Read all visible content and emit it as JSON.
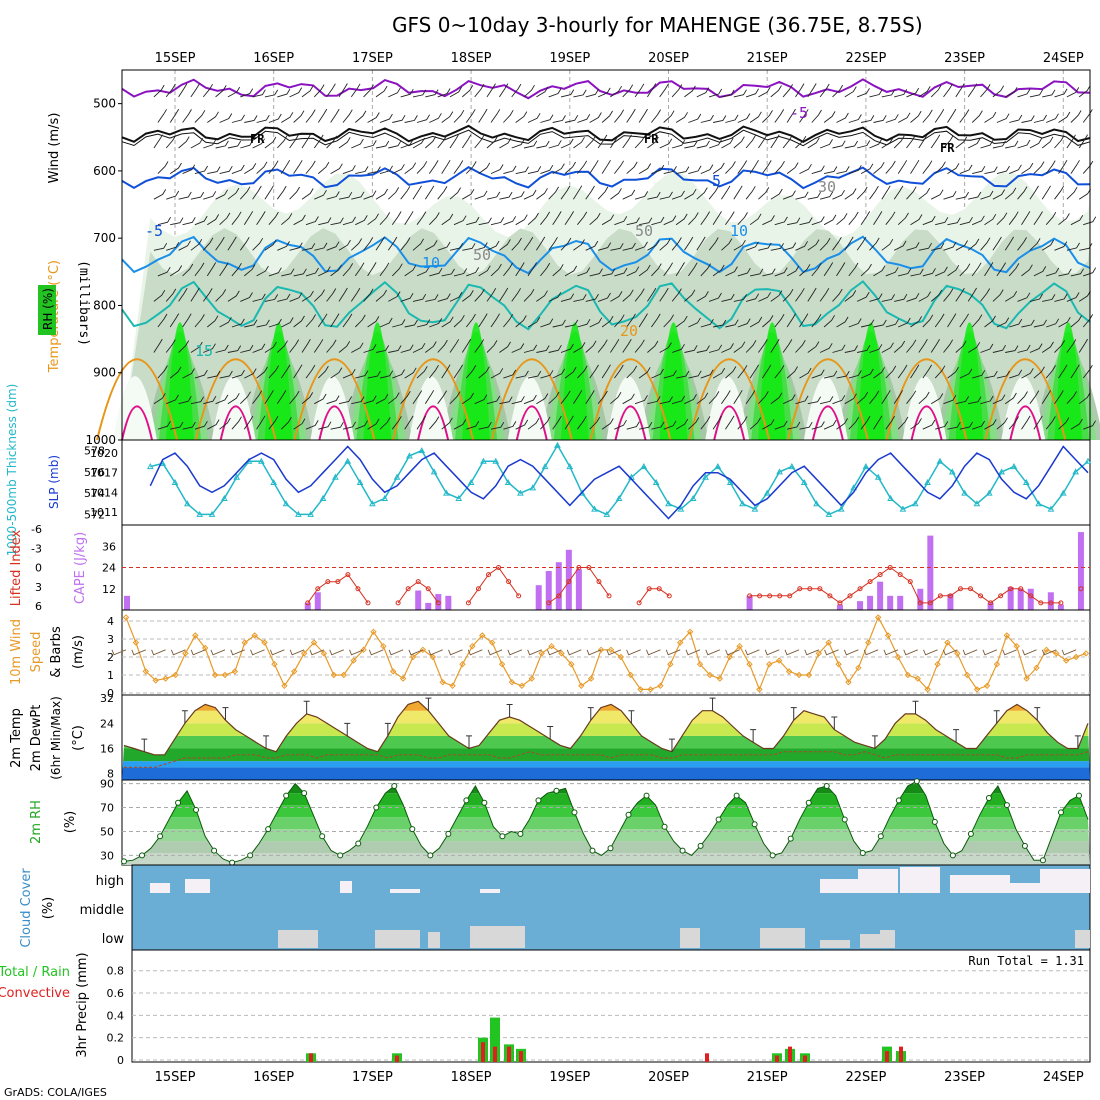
{
  "title": "GFS 0~10day 3-hourly for MAHENGE (36.75E, 8.75S)",
  "credit": "GrADS: COLA/IGES",
  "dates": [
    "15SEP",
    "16SEP",
    "17SEP",
    "18SEP",
    "19SEP",
    "20SEP",
    "21SEP",
    "22SEP",
    "23SEP",
    "24SEP"
  ],
  "colors": {
    "rh_green": "#22c422",
    "temp_purple": "#8a12c0",
    "temp_blue": "#1050d8",
    "temp_lightblue": "#1a8ee8",
    "temp_teal": "#1ab8b0",
    "temp_orange": "#e8961a",
    "temp_red": "#e0108a",
    "slp_blue": "#1a3ad0",
    "thick_cyan": "#22b8c8",
    "cape_purple": "#c070f0",
    "li_red": "#d83020",
    "wind_orange": "#e89a28",
    "cloud_blue": "#6aaed6",
    "precip_green": "#22c422",
    "precip_red": "#e02020"
  },
  "panels": {
    "upper": {
      "ylabel_main": "(millibars)",
      "labels": [
        "RH (%)",
        "Temperature (°C)",
        "Wind (m/s)"
      ],
      "yticks": [
        500,
        600,
        700,
        800,
        900,
        1000
      ],
      "contour_labels": [
        "-5",
        "FR",
        "5",
        "10",
        "15",
        "20",
        "FR",
        "FR",
        "10",
        "5",
        "20",
        "10",
        "30",
        "30",
        "50",
        "50",
        "50",
        "30",
        "-5",
        "10"
      ]
    },
    "slp": {
      "left_label": "1000-500mb Thickness (dm)",
      "right_label": "SLP (mb)",
      "thick_ticks": [
        572,
        574,
        576,
        578
      ],
      "slp_ticks": [
        1011,
        1014,
        1017,
        1020
      ]
    },
    "cape": {
      "left_label": "Lifted Index",
      "right_label": "CAPE (J/kg)",
      "li_ticks": [
        "-6",
        "-3",
        "0",
        "3",
        "6"
      ],
      "cape_ticks": [
        "12",
        "24",
        "36"
      ]
    },
    "wind": {
      "label_top": "10m Wind",
      "label_mid": "Speed",
      "label_bot": "& Barbs",
      "unit": "(m/s)",
      "yticks": [
        0,
        1,
        2,
        3,
        4
      ]
    },
    "temp": {
      "label_a": "2m Temp",
      "label_b": "2m DewPt",
      "label_c": "(6hr Min/Max)",
      "unit": "(°C)",
      "yticks": [
        8,
        16,
        24,
        32
      ]
    },
    "rh": {
      "label": "2m RH",
      "unit": "(%)",
      "yticks": [
        30,
        50,
        70,
        90
      ]
    },
    "cloud": {
      "label": "Cloud Cover",
      "unit": "(%)",
      "levels": [
        "high",
        "middle",
        "low"
      ]
    },
    "precip": {
      "label_a": "Total / Rain",
      "label_b": "Convective",
      "label_c": "3hr Precip (mm)",
      "run_total": "Run Total = 1.31",
      "yticks": [
        "0",
        "0.2",
        "0.4",
        "0.6",
        "0.8"
      ]
    }
  },
  "chart_data": [
    {
      "type": "line",
      "name": "upper-air cross-section",
      "x_unit": "3-hourly steps from 14SEP 18Z",
      "y_axis": "pressure (mb)",
      "ylim": [
        1000,
        450
      ]
    },
    {
      "type": "line",
      "series": [
        {
          "name": "SLP",
          "values": [
            1015,
            1019,
            1020,
            1018,
            1015,
            1014,
            1015,
            1017,
            1019,
            1020,
            1019,
            1016,
            1014,
            1015,
            1017,
            1019,
            1021,
            1019,
            1016,
            1014,
            1015,
            1017,
            1019,
            1020,
            1018,
            1016,
            1014,
            1013,
            1015,
            1018,
            1019,
            1018,
            1016,
            1014,
            1012,
            1014,
            1016,
            1017,
            1018,
            1016,
            1014,
            1012,
            1010,
            1012,
            1015,
            1017,
            1017,
            1016,
            1014,
            1012,
            1013,
            1015,
            1017,
            1018,
            1016,
            1014,
            1012,
            1014,
            1017,
            1019,
            1020,
            1018,
            1016,
            1014,
            1013,
            1015,
            1018,
            1020,
            1019,
            1016,
            1014,
            1013,
            1015,
            1018,
            1021,
            1019,
            1017,
            1015,
            1017,
            1019,
            1021
          ]
        },
        {
          "name": "Thickness",
          "values": [
            576.5,
            576.8,
            575.0,
            573.0,
            572.0,
            572.0,
            573.5,
            575.5,
            577.0,
            577.0,
            575.0,
            573.0,
            572.0,
            572.0,
            573.5,
            575.5,
            577.0,
            575.0,
            573.0,
            573.5,
            575.5,
            577.5,
            578.0,
            576.0,
            574.0,
            573.5,
            575.0,
            577.0,
            577.0,
            575.0,
            574.0,
            574.5,
            576.5,
            578.5,
            576.5,
            574.0,
            572.5,
            572.0,
            573.5,
            575.5,
            576.5,
            575.0,
            573.0,
            572.5,
            573.5,
            575.5,
            576.5,
            575.0,
            573.0,
            572.5,
            574.0,
            576.0,
            576.5,
            575.0,
            573.0,
            572.0,
            572.5,
            574.5,
            576.5,
            575.5,
            573.5,
            572.5,
            573.0,
            575.0,
            577.0,
            576.0,
            574.0,
            573.0,
            574.0,
            576.0,
            576.5,
            575.0,
            573.0,
            572.5,
            574.0,
            576.0,
            577.0,
            575.0,
            573.0,
            572.5,
            573.0
          ]
        }
      ],
      "slp_ylim": [
        1009,
        1022
      ],
      "thick_ylim": [
        571,
        579
      ]
    },
    {
      "type": "bar",
      "name": "CAPE",
      "values": [
        8,
        0,
        0,
        0,
        0,
        0,
        0,
        0,
        0,
        0,
        0,
        0,
        0,
        0,
        0,
        0,
        0,
        0,
        4,
        10,
        0,
        0,
        0,
        0,
        0,
        0,
        0,
        0,
        0,
        11,
        4,
        9,
        8,
        0,
        0,
        0,
        0,
        0,
        0,
        0,
        0,
        14,
        22,
        27,
        34,
        23,
        0,
        0,
        0,
        0,
        0,
        0,
        0,
        0,
        0,
        0,
        0,
        0,
        0,
        0,
        0,
        0,
        8,
        0,
        0,
        0,
        0,
        0,
        0,
        0,
        0,
        3,
        0,
        5,
        8,
        16,
        8,
        8,
        0,
        12,
        42,
        0,
        9,
        0,
        0,
        0,
        4,
        0,
        13,
        12,
        12,
        0,
        10,
        3,
        0,
        44
      ]
    },
    {
      "type": "line",
      "name": "Lifted Index",
      "values": [
        6,
        6,
        6,
        6,
        6,
        6,
        6,
        6,
        6,
        6,
        6,
        6,
        6,
        6,
        6,
        6,
        6,
        6,
        5,
        3,
        2,
        2,
        1,
        3,
        5,
        6,
        6,
        5,
        3,
        2,
        3,
        5,
        6,
        6,
        5,
        3,
        1,
        0,
        2,
        4,
        6,
        6,
        5,
        4,
        2,
        0,
        0,
        2,
        4,
        6,
        6,
        5,
        3,
        3,
        4,
        6,
        6,
        6,
        6,
        6,
        6,
        6,
        4,
        4,
        4,
        4,
        4,
        3,
        3,
        3,
        4,
        5,
        4,
        3,
        2,
        1,
        0,
        1,
        2,
        5,
        5,
        4,
        4,
        3,
        3,
        4,
        5,
        4,
        3,
        3,
        4,
        5,
        5,
        5,
        6,
        3
      ]
    },
    {
      "type": "line",
      "name": "10m Wind Speed",
      "yticks": [
        0,
        1,
        2,
        3,
        4
      ],
      "ylim": [
        0,
        4.5
      ],
      "values": [
        4.2,
        2.8,
        1.2,
        0.7,
        0.8,
        1.0,
        2.2,
        3.2,
        2.5,
        1.0,
        1.0,
        1.2,
        2.8,
        3.2,
        2.8,
        1.6,
        0.4,
        1.2,
        2.2,
        2.8,
        2.2,
        1.0,
        1.0,
        1.8,
        2.4,
        3.4,
        2.6,
        1.2,
        0.8,
        2.0,
        2.4,
        2.0,
        0.6,
        0.4,
        1.6,
        2.6,
        3.2,
        2.8,
        1.6,
        0.6,
        0.4,
        0.8,
        2.2,
        2.6,
        2.2,
        1.6,
        0.4,
        0.8,
        2.4,
        2.4,
        2.0,
        1.0,
        0.2,
        0.2,
        0.4,
        1.6,
        2.8,
        3.4,
        1.6,
        1.0,
        0.8,
        2.0,
        2.6,
        1.6,
        0.2,
        1.6,
        1.8,
        1.2,
        1.0,
        1.0,
        2.2,
        2.8,
        1.6,
        0.6,
        1.4,
        2.8,
        4.2,
        3.2,
        2.0,
        1.0,
        0.8,
        0.2,
        1.6,
        2.8,
        2.2,
        1.0,
        0.2,
        0.4,
        1.6,
        3.2,
        2.6,
        0.8,
        1.4,
        2.4,
        2.2,
        1.8,
        2.0,
        2.2
      ]
    },
    {
      "type": "area",
      "name": "2m Temp",
      "ylim": [
        6,
        33
      ],
      "yticks": [
        8,
        16,
        24,
        32
      ],
      "values": [
        17,
        16,
        15,
        14,
        14,
        19,
        24,
        28,
        30,
        29,
        25,
        22,
        20,
        18,
        16,
        15,
        20,
        24,
        27,
        26,
        24,
        22,
        20,
        18,
        16,
        15,
        20,
        26,
        30,
        31,
        28,
        24,
        20,
        18,
        16,
        17,
        21,
        25,
        26,
        25,
        23,
        21,
        19,
        17,
        16,
        20,
        25,
        29,
        30,
        28,
        24,
        20,
        18,
        16,
        15,
        20,
        25,
        28,
        28,
        26,
        23,
        20,
        18,
        16,
        16,
        20,
        25,
        28,
        27,
        26,
        22,
        20,
        18,
        17,
        16,
        19,
        24,
        27,
        27,
        25,
        22,
        20,
        18,
        16,
        16,
        20,
        24,
        28,
        30,
        28,
        25,
        21,
        18,
        16,
        16,
        24
      ]
    },
    {
      "type": "line",
      "name": "2m DewPt",
      "values": [
        10,
        10,
        10,
        10,
        11,
        12,
        13,
        13,
        13,
        13,
        13,
        14,
        14,
        14,
        13,
        13,
        14,
        14,
        14,
        13,
        14,
        14,
        14,
        14,
        14,
        14,
        13,
        14,
        14,
        14,
        13,
        13,
        14,
        14,
        14,
        14,
        14,
        13,
        13,
        14,
        15,
        14,
        14,
        14,
        14,
        14,
        14,
        14,
        13,
        14,
        14,
        14,
        14,
        13,
        13,
        14,
        14,
        14,
        14,
        14,
        14,
        14,
        14,
        14,
        14,
        15,
        15,
        15,
        15,
        15,
        15,
        14,
        14,
        15,
        14,
        13,
        14,
        14,
        14,
        14,
        14,
        14,
        14,
        14,
        14,
        14,
        14,
        13,
        13,
        14,
        14,
        14,
        14,
        14,
        14,
        15
      ]
    },
    {
      "type": "area",
      "name": "2m RH",
      "ylim": [
        22,
        93
      ],
      "yticks": [
        30,
        50,
        70,
        90
      ],
      "values": [
        25,
        26,
        30,
        36,
        46,
        60,
        74,
        84,
        68,
        46,
        34,
        27,
        24,
        26,
        30,
        40,
        52,
        66,
        80,
        90,
        82,
        64,
        46,
        34,
        30,
        34,
        40,
        54,
        70,
        82,
        88,
        72,
        52,
        38,
        30,
        36,
        48,
        62,
        76,
        88,
        74,
        54,
        46,
        50,
        48,
        60,
        76,
        82,
        84,
        86,
        66,
        48,
        34,
        30,
        36,
        50,
        64,
        74,
        80,
        72,
        54,
        42,
        34,
        30,
        38,
        48,
        60,
        72,
        80,
        74,
        56,
        40,
        30,
        32,
        44,
        60,
        74,
        86,
        88,
        80,
        60,
        42,
        32,
        34,
        46,
        62,
        76,
        88,
        92,
        80,
        58,
        40,
        30,
        34,
        48,
        64,
        78,
        88,
        72,
        52,
        38,
        26,
        26,
        46,
        66,
        76,
        80,
        60
      ]
    }
  ]
}
